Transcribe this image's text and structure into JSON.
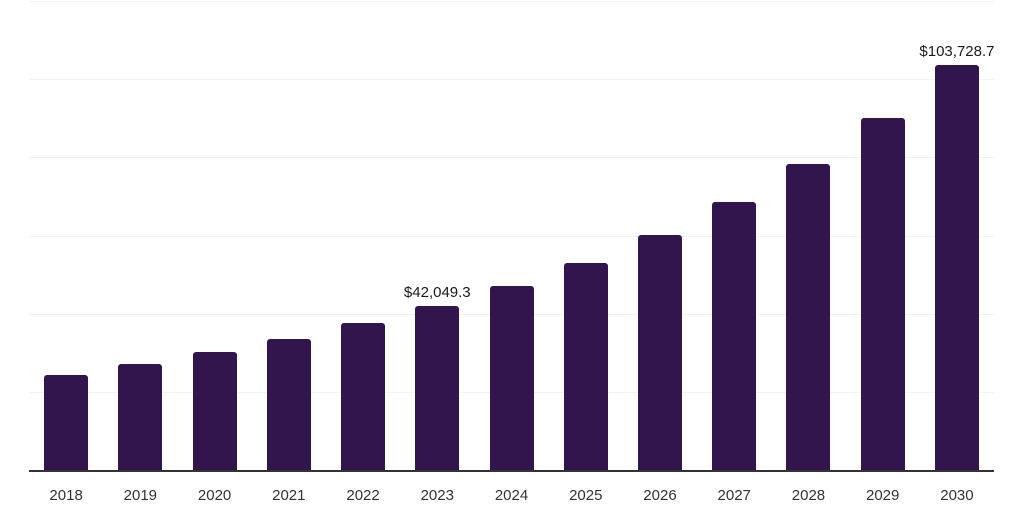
{
  "chart_data": {
    "type": "bar",
    "title": "",
    "xlabel": "",
    "ylabel": "",
    "categories": [
      "2018",
      "2019",
      "2020",
      "2021",
      "2022",
      "2023",
      "2024",
      "2025",
      "2026",
      "2027",
      "2028",
      "2029",
      "2030"
    ],
    "values": [
      24300,
      27250,
      30250,
      33450,
      37550,
      42049.3,
      47100,
      53100,
      60150,
      68500,
      78300,
      90000,
      103728.7
    ],
    "value_labels": {
      "2023": "$42,049.3",
      "2030": "$103,728.7"
    },
    "ylim": [
      0,
      120000
    ],
    "gridline_step": 20000,
    "grid": true,
    "legend": "none",
    "colors": {
      "bar": "#33154e",
      "gridline": "#f2f2f2",
      "axis_line": "#333333",
      "tick_label": "#333333",
      "value_label": "#1a1a1a",
      "background": "#ffffff"
    }
  }
}
